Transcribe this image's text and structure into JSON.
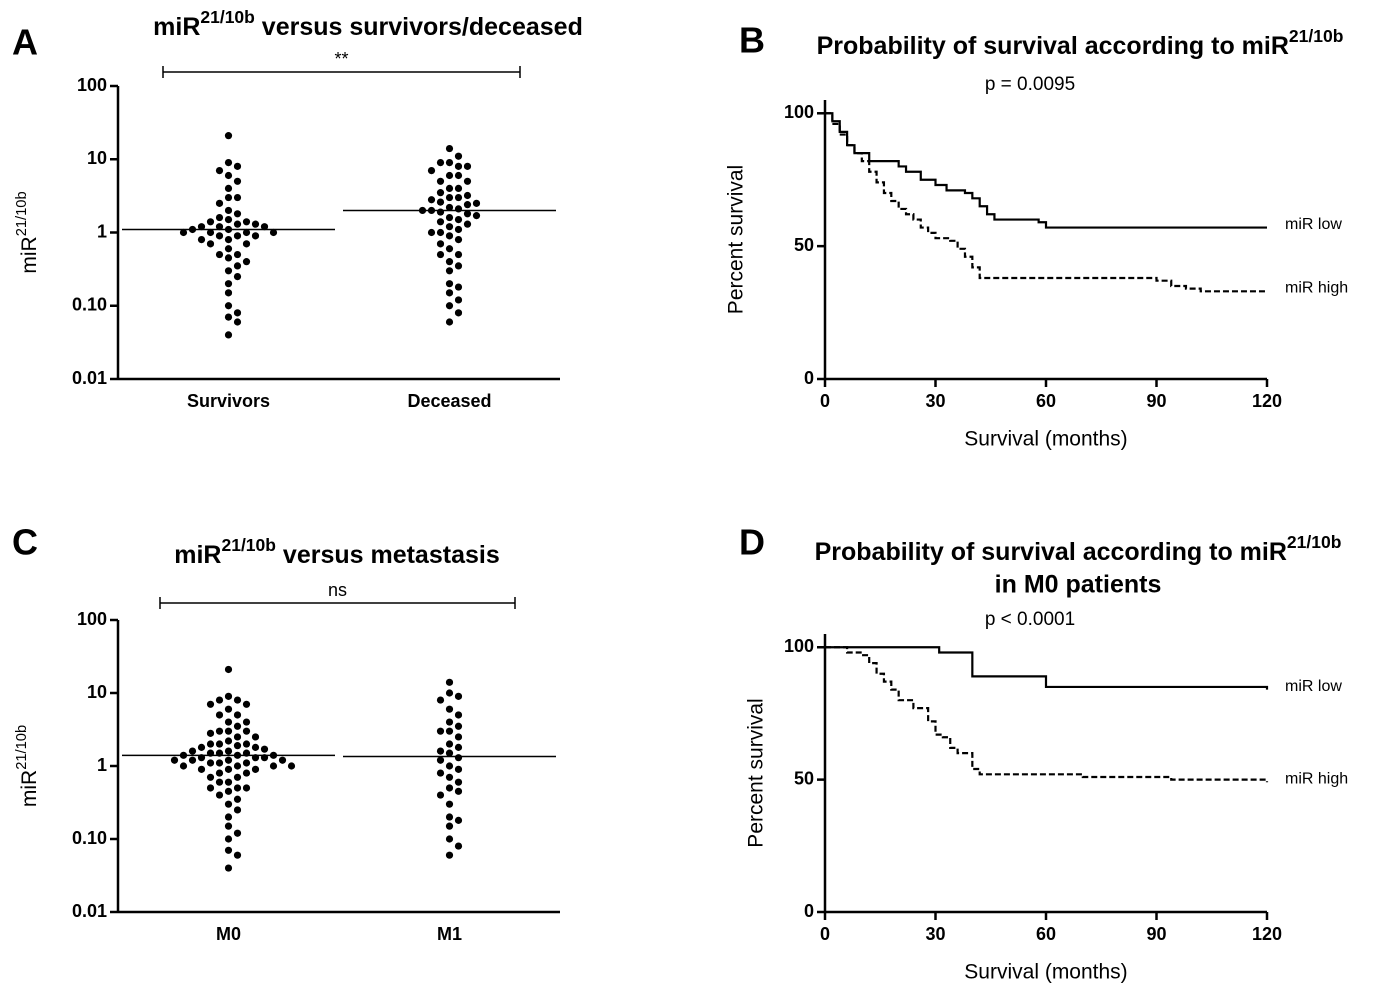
{
  "chart_data": [
    {
      "type": "dot",
      "panel": "A",
      "title": [
        "miR",
        "21/10b",
        " versus survivors/deceased"
      ],
      "y_label": [
        "miR",
        "21/10b"
      ],
      "log_y": true,
      "ylim": [
        0.01,
        100
      ],
      "yticks": [
        0.01,
        {
          "value": 0.1,
          "label": "0.10"
        },
        1,
        10,
        100
      ],
      "categories": [
        "Survivors",
        "Deceased"
      ],
      "color": "#000000",
      "values": [
        [
          21,
          9,
          8,
          7,
          6,
          5,
          4,
          3,
          3,
          2.5,
          2,
          1.8,
          1.6,
          1.5,
          1.4,
          1.4,
          1.3,
          1.3,
          1.2,
          1.2,
          1.2,
          1.1,
          1.1,
          1.0,
          1.0,
          1.0,
          1.0,
          0.9,
          0.9,
          0.9,
          0.8,
          0.8,
          0.7,
          0.7,
          0.6,
          0.5,
          0.5,
          0.45,
          0.4,
          0.35,
          0.3,
          0.25,
          0.2,
          0.15,
          0.1,
          0.08,
          0.07,
          0.06,
          0.04
        ],
        [
          14,
          11,
          9,
          9,
          8,
          8,
          7,
          6,
          6,
          5,
          5,
          4,
          4,
          3.5,
          3.2,
          3,
          3,
          2.8,
          2.6,
          2.5,
          2.4,
          2.2,
          2.1,
          2.0,
          2.0,
          1.9,
          1.8,
          1.7,
          1.6,
          1.5,
          1.4,
          1.3,
          1.2,
          1.1,
          1.0,
          1.0,
          0.9,
          0.8,
          0.7,
          0.6,
          0.5,
          0.5,
          0.4,
          0.35,
          0.3,
          0.2,
          0.18,
          0.15,
          0.12,
          0.1,
          0.08,
          0.06
        ]
      ],
      "medians": [
        1.1,
        2.0
      ],
      "significance": "**"
    },
    {
      "type": "km",
      "panel": "B",
      "title": [
        "Probability of survival according to miR",
        "21/10b"
      ],
      "subtitle": "p = 0.0095",
      "x_label": "Survival (months)",
      "y_label": "Percent survival",
      "xlim": [
        0,
        120
      ],
      "xticks": [
        0,
        30,
        60,
        90,
        120
      ],
      "ylim": [
        0,
        105
      ],
      "yticks": [
        0,
        50,
        100
      ],
      "series": [
        {
          "name": "miR low",
          "color": "#000000",
          "line_style": "solid",
          "x": [
            0,
            2,
            4,
            6,
            8,
            12,
            20,
            22,
            26,
            30,
            33,
            38,
            40,
            42,
            44,
            46,
            58,
            60,
            120
          ],
          "values": [
            100,
            97,
            93,
            88,
            85,
            82,
            80,
            78,
            75,
            73,
            71,
            70,
            68,
            65,
            62,
            60,
            59,
            57,
            57
          ]
        },
        {
          "name": "miR high",
          "color": "#000000",
          "line_style": "dashed",
          "x": [
            0,
            2,
            4,
            6,
            8,
            10,
            12,
            14,
            16,
            18,
            20,
            22,
            24,
            26,
            28,
            30,
            34,
            36,
            38,
            40,
            42,
            80,
            90,
            94,
            98,
            102,
            120
          ],
          "values": [
            100,
            96,
            92,
            88,
            85,
            82,
            78,
            74,
            70,
            67,
            64,
            62,
            60,
            57,
            55,
            53,
            52,
            49,
            46,
            42,
            38,
            38,
            37,
            35,
            34,
            33,
            33
          ]
        }
      ]
    },
    {
      "type": "dot",
      "panel": "C",
      "title": [
        "miR",
        "21/10b",
        " versus metastasis"
      ],
      "y_label": [
        "miR",
        "21/10b"
      ],
      "log_y": true,
      "ylim": [
        0.01,
        100
      ],
      "yticks": [
        0.01,
        {
          "value": 0.1,
          "label": "0.10"
        },
        1,
        10,
        100
      ],
      "categories": [
        "M0",
        "M1"
      ],
      "color": "#000000",
      "values": [
        [
          21,
          9,
          8,
          8,
          7,
          7,
          6,
          5,
          5,
          4,
          4,
          3.5,
          3,
          3,
          3,
          2.8,
          2.5,
          2.5,
          2.2,
          2,
          2,
          2,
          1.9,
          1.8,
          1.8,
          1.7,
          1.6,
          1.6,
          1.5,
          1.5,
          1.5,
          1.4,
          1.4,
          1.4,
          1.3,
          1.3,
          1.3,
          1.2,
          1.2,
          1.2,
          1.2,
          1.1,
          1.1,
          1.1,
          1.0,
          1.0,
          1.0,
          1.0,
          0.9,
          0.9,
          0.9,
          0.8,
          0.8,
          0.7,
          0.7,
          0.6,
          0.6,
          0.5,
          0.5,
          0.5,
          0.45,
          0.4,
          0.35,
          0.3,
          0.25,
          0.2,
          0.15,
          0.12,
          0.1,
          0.07,
          0.06,
          0.04
        ],
        [
          14,
          10,
          9,
          8,
          6,
          5,
          4,
          3.5,
          3,
          3,
          2.5,
          2,
          1.8,
          1.6,
          1.5,
          1.3,
          1.2,
          1.0,
          0.9,
          0.8,
          0.7,
          0.6,
          0.5,
          0.45,
          0.4,
          0.3,
          0.2,
          0.18,
          0.15,
          0.1,
          0.08,
          0.06
        ]
      ],
      "medians": [
        1.4,
        1.35
      ],
      "significance": "ns"
    },
    {
      "type": "km",
      "panel": "D",
      "title": [
        "Probability of survival according to miR",
        "21/10b"
      ],
      "title_2": "in M0 patients",
      "subtitle": "p < 0.0001",
      "x_label": "Survival (months)",
      "y_label": "Percent survival",
      "xlim": [
        0,
        120
      ],
      "xticks": [
        0,
        30,
        60,
        90,
        120
      ],
      "ylim": [
        0,
        105
      ],
      "yticks": [
        0,
        50,
        100
      ],
      "series": [
        {
          "name": "miR low",
          "color": "#000000",
          "line_style": "solid",
          "x": [
            0,
            31,
            38,
            40,
            58,
            60,
            120
          ],
          "values": [
            100,
            98,
            98,
            89,
            89,
            85,
            84
          ]
        },
        {
          "name": "miR high",
          "color": "#000000",
          "line_style": "dashed",
          "x": [
            0,
            6,
            10,
            12,
            14,
            16,
            18,
            20,
            24,
            28,
            30,
            32,
            34,
            36,
            40,
            42,
            70,
            94,
            120
          ],
          "values": [
            100,
            98,
            97,
            94,
            90,
            87,
            84,
            80,
            77,
            72,
            67,
            66,
            62,
            60,
            54,
            52,
            51,
            50,
            49
          ]
        }
      ]
    }
  ]
}
